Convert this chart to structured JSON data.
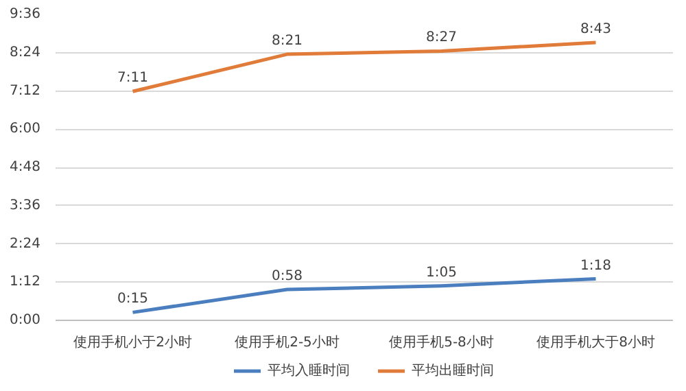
{
  "chart_data": {
    "type": "line",
    "categories": [
      "使用手机小于2小时",
      "使用手机2-5小时",
      "使用手机5-8小时",
      "使用手机大于8小时"
    ],
    "series": [
      {
        "name": "平均入睡时间",
        "color": "#4a7ebf",
        "values": [
          0.25,
          0.9667,
          1.0833,
          1.3
        ],
        "value_labels": [
          "0:15",
          "0:58",
          "1:05",
          "1:18"
        ]
      },
      {
        "name": "平均出睡时间",
        "color": "#e07b39",
        "values": [
          7.1833,
          8.35,
          8.45,
          8.7167
        ],
        "value_labels": [
          "7:11",
          "8:21",
          "8:27",
          "8:43"
        ]
      }
    ],
    "ylim": [
      0,
      9.6
    ],
    "yticks": [
      {
        "value": 0,
        "label": "0:00"
      },
      {
        "value": 1.2,
        "label": "1:12"
      },
      {
        "value": 2.4,
        "label": "2:24"
      },
      {
        "value": 3.6,
        "label": "3:36"
      },
      {
        "value": 4.8,
        "label": "4:48"
      },
      {
        "value": 6,
        "label": "6:00"
      },
      {
        "value": 7.2,
        "label": "7:12"
      },
      {
        "value": 8.4,
        "label": "8:24"
      },
      {
        "value": 9.6,
        "label": "9:36"
      }
    ],
    "grid": "y",
    "legend": "bottom",
    "marker": "none",
    "line_style": "solid"
  }
}
